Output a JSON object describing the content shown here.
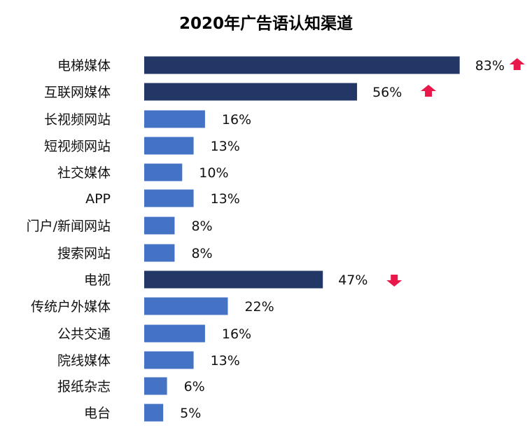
{
  "chart_data": {
    "type": "bar",
    "orientation": "horizontal",
    "title": "2020年广告语认知渠道",
    "xlabel": "",
    "ylabel": "",
    "xlim": [
      0,
      100
    ],
    "grid": false,
    "legend": "none",
    "colors": {
      "highlight": "#233766",
      "normal": "#4472c4",
      "arrow": "#e8194a"
    },
    "categories": [
      "电梯媒体",
      "互联网媒体",
      "长视频网站",
      "短视频网站",
      "社交媒体",
      "APP",
      "门户/新闻网站",
      "搜索网站",
      "电视",
      "传统户外媒体",
      "公共交通",
      "院线媒体",
      "报纸杂志",
      "电台"
    ],
    "values": [
      83,
      56,
      16,
      13,
      10,
      13,
      8,
      8,
      47,
      22,
      16,
      13,
      6,
      5
    ],
    "value_labels": [
      "83%",
      "56%",
      "16%",
      "13%",
      "10%",
      "13%",
      "8%",
      "8%",
      "47%",
      "22%",
      "16%",
      "13%",
      "6%",
      "5%"
    ],
    "highlight": [
      true,
      true,
      false,
      false,
      false,
      false,
      false,
      false,
      true,
      false,
      false,
      false,
      false,
      false
    ],
    "trend_icons": [
      "arrow-up-icon",
      "arrow-up-icon",
      "",
      "",
      "",
      "",
      "",
      "",
      "arrow-down-icon",
      "",
      "",
      "",
      "",
      ""
    ]
  }
}
